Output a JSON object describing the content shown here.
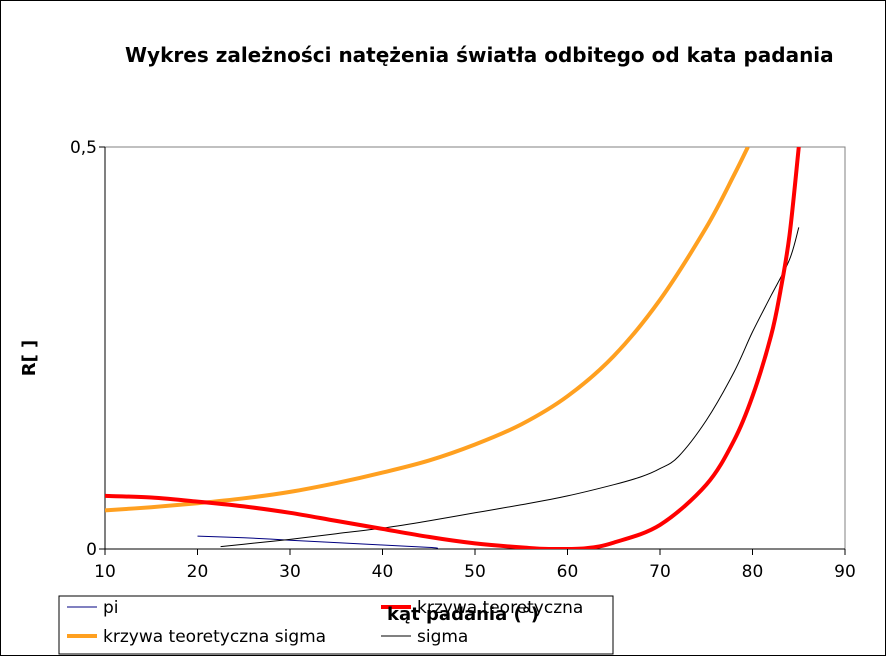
{
  "chart_data": {
    "type": "line",
    "title": "Wykres zależności natężenia światła odbitego od kata padania",
    "xlabel": "kąt padania (°)",
    "ylabel": "R[ ]",
    "xlim": [
      10,
      90
    ],
    "ylim": [
      0,
      0.5
    ],
    "xticks": [
      "10",
      "20",
      "30",
      "40",
      "50",
      "60",
      "70",
      "80",
      "90"
    ],
    "yticks": [
      "0",
      "0,5"
    ],
    "grid": false,
    "legend_position": "bottom",
    "series": [
      {
        "name": "pi",
        "color": "#000080",
        "width": 1,
        "points": [
          [
            20,
            0.016
          ],
          [
            25,
            0.014
          ],
          [
            30,
            0.011
          ],
          [
            35,
            0.008
          ],
          [
            40,
            0.005
          ],
          [
            45,
            0.002
          ],
          [
            46,
            0.001
          ]
        ]
      },
      {
        "name": "krzywa teoretyczna",
        "color": "#ff0000",
        "width": 4,
        "points": [
          [
            10,
            0.066
          ],
          [
            15,
            0.064
          ],
          [
            20,
            0.059
          ],
          [
            25,
            0.053
          ],
          [
            30,
            0.045
          ],
          [
            35,
            0.035
          ],
          [
            40,
            0.025
          ],
          [
            45,
            0.015
          ],
          [
            50,
            0.007
          ],
          [
            55,
            0.002
          ],
          [
            58,
            0.0
          ],
          [
            62,
            0.001
          ],
          [
            65,
            0.008
          ],
          [
            70,
            0.03
          ],
          [
            75,
            0.08
          ],
          [
            78,
            0.135
          ],
          [
            80,
            0.19
          ],
          [
            82,
            0.265
          ],
          [
            83,
            0.32
          ],
          [
            84,
            0.39
          ],
          [
            85,
            0.5
          ]
        ]
      },
      {
        "name": "krzywa teoretyczna sigma",
        "color": "#ffa020",
        "width": 4,
        "points": [
          [
            10,
            0.048
          ],
          [
            15,
            0.052
          ],
          [
            20,
            0.057
          ],
          [
            25,
            0.063
          ],
          [
            30,
            0.071
          ],
          [
            35,
            0.082
          ],
          [
            40,
            0.095
          ],
          [
            45,
            0.11
          ],
          [
            50,
            0.13
          ],
          [
            55,
            0.155
          ],
          [
            60,
            0.19
          ],
          [
            65,
            0.24
          ],
          [
            70,
            0.31
          ],
          [
            75,
            0.4
          ],
          [
            78,
            0.465
          ],
          [
            79.5,
            0.5
          ]
        ]
      },
      {
        "name": "sigma",
        "color": "#000000",
        "width": 1,
        "points": [
          [
            22.5,
            0.003
          ],
          [
            25,
            0.006
          ],
          [
            30,
            0.012
          ],
          [
            35,
            0.019
          ],
          [
            40,
            0.026
          ],
          [
            45,
            0.035
          ],
          [
            50,
            0.045
          ],
          [
            55,
            0.055
          ],
          [
            60,
            0.066
          ],
          [
            65,
            0.08
          ],
          [
            68,
            0.09
          ],
          [
            70,
            0.1
          ],
          [
            72,
            0.115
          ],
          [
            75,
            0.16
          ],
          [
            78,
            0.22
          ],
          [
            80,
            0.27
          ],
          [
            82,
            0.315
          ],
          [
            84,
            0.36
          ],
          [
            85,
            0.4
          ]
        ]
      }
    ]
  }
}
